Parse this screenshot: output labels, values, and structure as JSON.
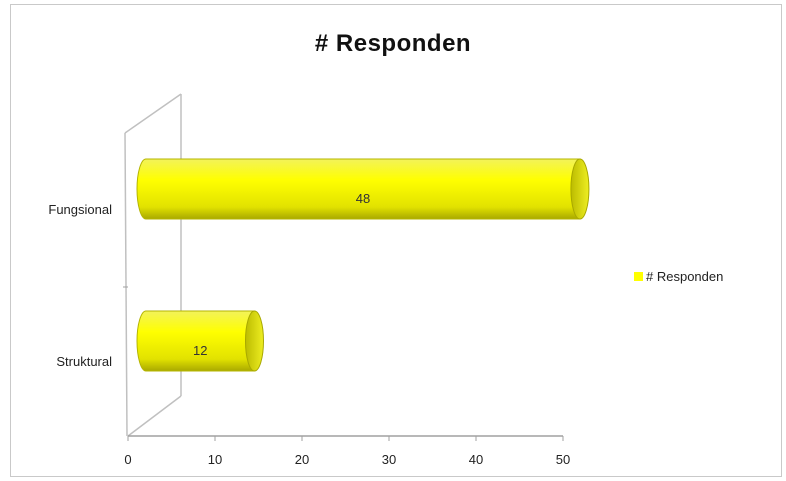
{
  "chart_data": {
    "type": "bar",
    "orientation": "horizontal",
    "style": "3d-cylinder",
    "title": "# Responden",
    "categories": [
      "Fungsional",
      "Struktural"
    ],
    "series": [
      {
        "name": "# Responden",
        "values": [
          48,
          12
        ],
        "color": "#ffff00"
      }
    ],
    "data_labels": [
      "48",
      "12"
    ],
    "xlim": [
      0,
      50
    ],
    "x_ticks": [
      0,
      10,
      20,
      30,
      40,
      50
    ],
    "x_tick_labels": [
      "0",
      "10",
      "20",
      "30",
      "40",
      "50"
    ],
    "grid": false,
    "legend_position": "right"
  }
}
